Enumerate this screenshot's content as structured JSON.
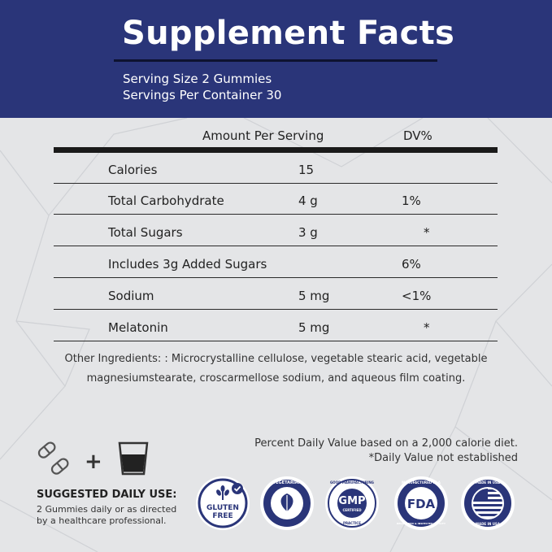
{
  "header": {
    "title": "Supplement Facts",
    "serving_size": "Serving Size 2 Gummies",
    "servings_per_container": "Servings Per Container 30"
  },
  "table": {
    "amount_header": "Amount Per Serving",
    "dv_header": "DV%",
    "rows": [
      {
        "name": "Calories",
        "amount": "15",
        "dv": ""
      },
      {
        "name": "Total Carbohydrate",
        "amount": "4 g",
        "dv": "1%"
      },
      {
        "name": "Total Sugars",
        "amount": "3 g",
        "dv": "*"
      },
      {
        "name": "Includes 3g Added Sugars",
        "amount": "",
        "dv": "6%"
      },
      {
        "name": "Sodium",
        "amount": "5 mg",
        "dv": "<1%"
      },
      {
        "name": "Melatonin",
        "amount": "5 mg",
        "dv": "*"
      }
    ]
  },
  "ingredients": {
    "line1": "Other Ingredients: : Microcrystalline cellulose, vegetable stearic acid, vegetable",
    "line2": "magnesiumstearate, croscarmellose sodium, and aqueous film coating."
  },
  "footnotes": {
    "daily_value": "Percent Daily Value based on a 2,000 calorie diet.",
    "not_established": "*Daily Value not established"
  },
  "suggested_use": {
    "plus": "+",
    "title": "SUGGESTED DAILY USE:",
    "line1": "2 Gummies daily or as directed",
    "line2": "by a healthcare professional."
  },
  "badges": {
    "gluten_free": {
      "line1": "GLUTEN",
      "line2": "FREE"
    },
    "vegetarian": {
      "text": "VEGETARIAN"
    },
    "gmp": {
      "center": "GMP",
      "sub": "CERTIFIED",
      "ring_top": "GOOD MANUFACTURING",
      "ring_bottom": "PRACTICE"
    },
    "fda": {
      "center": "FDA",
      "ring_top": "MANUFACTURED IN A",
      "ring_bottom": "REGISTERED & INSPECTED FACILITY"
    },
    "usa": {
      "ring_top": "MADE IN USA",
      "ring_bottom": "MADE IN USA"
    }
  },
  "colors": {
    "header_navy": "#2a3579",
    "badge_blue": "#2a3579",
    "background": "#e4e5e7"
  }
}
